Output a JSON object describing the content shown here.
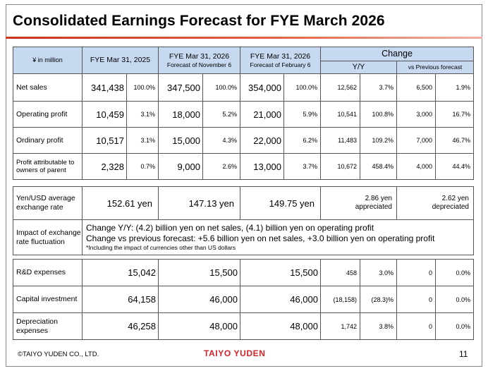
{
  "slide": {
    "title": "Consolidated Earnings Forecast for FYE March 2026",
    "copyright": "©TAIYO YUDEN CO., LTD.",
    "logo_text": "TAIYO YUDEN",
    "page_number": "11"
  },
  "header": {
    "unit": "¥ in million",
    "col_fy25": "FYE Mar 31, 2025",
    "col_nov_main": "FYE Mar 31, 2026",
    "col_nov_sub": "Forecast of November 6",
    "col_feb_main": "FYE Mar 31, 2026",
    "col_feb_sub": "Forecast of February 6",
    "change": "Change",
    "yy": "Y/Y",
    "vs_prev": "vs Previous forecast"
  },
  "earnings_rows": [
    {
      "label": "Net sales",
      "fy25": "341,438",
      "fy25_pct": "100.0%",
      "nov": "347,500",
      "nov_pct": "100.0%",
      "feb": "354,000",
      "feb_pct": "100.0%",
      "yy_amt": "12,562",
      "yy_pct": "3.7%",
      "vs_amt": "6,500",
      "vs_pct": "1.9%"
    },
    {
      "label": "Operating profit",
      "fy25": "10,459",
      "fy25_pct": "3.1%",
      "nov": "18,000",
      "nov_pct": "5.2%",
      "feb": "21,000",
      "feb_pct": "5.9%",
      "yy_amt": "10,541",
      "yy_pct": "100.8%",
      "vs_amt": "3,000",
      "vs_pct": "16.7%"
    },
    {
      "label": "Ordinary profit",
      "fy25": "10,517",
      "fy25_pct": "3.1%",
      "nov": "15,000",
      "nov_pct": "4.3%",
      "feb": "22,000",
      "feb_pct": "6.2%",
      "yy_amt": "11,483",
      "yy_pct": "109.2%",
      "vs_amt": "7,000",
      "vs_pct": "46.7%"
    },
    {
      "label": "Profit attributable to owners of parent",
      "fy25": "2,328",
      "fy25_pct": "0.7%",
      "nov": "9,000",
      "nov_pct": "2.6%",
      "feb": "13,000",
      "feb_pct": "3.7%",
      "yy_amt": "10,672",
      "yy_pct": "458.4%",
      "vs_amt": "4,000",
      "vs_pct": "44.4%"
    }
  ],
  "fx": {
    "label": "Yen/USD average exchange rate",
    "fy25": "152.61 yen",
    "nov": "147.13 yen",
    "feb": "149.75 yen",
    "yy_note_1": "2.86 yen",
    "yy_note_2": "appreciated",
    "vs_note_1": "2.62 yen",
    "vs_note_2": "depreciated"
  },
  "impact": {
    "label": "Impact of exchange rate fluctuation",
    "line1": "Change Y/Y: (4.2) billion yen on net sales, (4.1) billion yen on operating profit",
    "line2": "Change vs previous forecast: +5.6 billion yen on net sales, +3.0 billion yen on operating profit",
    "note": "*Including the impact of currencies other than US dollars"
  },
  "investment_rows": [
    {
      "label": "R&D expenses",
      "fy25": "15,042",
      "nov": "15,500",
      "feb": "15,500",
      "yy_amt": "458",
      "yy_pct": "3.0%",
      "vs_amt": "0",
      "vs_pct": "0.0%"
    },
    {
      "label": "Capital investment",
      "fy25": "64,158",
      "nov": "46,000",
      "feb": "46,000",
      "yy_amt": "(18,158)",
      "yy_pct": "(28.3)%",
      "vs_amt": "0",
      "vs_pct": "0.0%"
    },
    {
      "label": "Depreciation expenses",
      "fy25": "46,258",
      "nov": "48,000",
      "feb": "48,000",
      "yy_amt": "1,742",
      "yy_pct": "3.8%",
      "vs_amt": "0",
      "vs_pct": "0.0%"
    }
  ]
}
